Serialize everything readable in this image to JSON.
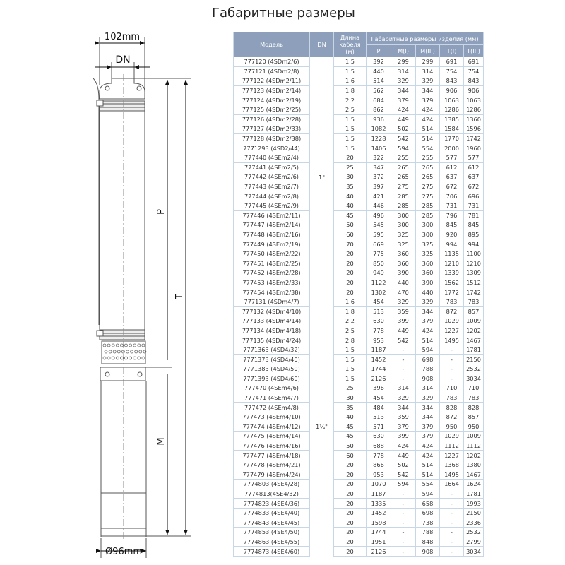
{
  "title": "Габаритные размеры",
  "drawing": {
    "width_top": "102mm",
    "dn_label": "DN",
    "p_label": "P",
    "t_label": "T",
    "m_label": "M",
    "diameter": "Ø96mm"
  },
  "table": {
    "headers": {
      "model": "Модель",
      "dn": "DN",
      "cable": "Длина кабеля (м)",
      "group": "Габаритные размеры изделия (мм)",
      "cols": [
        "P",
        "M(I)",
        "M(III)",
        "T(I)",
        "T(III)"
      ]
    },
    "groups": [
      {
        "dn": "1\"",
        "rows": [
          [
            "777120 (4SDm2/6)",
            "1.5",
            "392",
            "299",
            "299",
            "691",
            "691"
          ],
          [
            "777121 (4SDm2/8)",
            "1.5",
            "440",
            "314",
            "314",
            "754",
            "754"
          ],
          [
            "777122 (4SDm2/11)",
            "1.6",
            "514",
            "329",
            "329",
            "843",
            "843"
          ],
          [
            "777123 (4SDm2/14)",
            "1.8",
            "562",
            "344",
            "344",
            "906",
            "906"
          ],
          [
            "777124 (4SDm2/19)",
            "2.2",
            "684",
            "379",
            "379",
            "1063",
            "1063"
          ],
          [
            "777125 (4SDm2/25)",
            "2.5",
            "862",
            "424",
            "424",
            "1286",
            "1286"
          ],
          [
            "777126 (4SDm2/28)",
            "1.5",
            "936",
            "449",
            "424",
            "1385",
            "1360"
          ],
          [
            "777127 (4SDm2/33)",
            "1.5",
            "1082",
            "502",
            "514",
            "1584",
            "1596"
          ],
          [
            "777128 (4SDm2/38)",
            "1.5",
            "1228",
            "542",
            "514",
            "1770",
            "1742"
          ],
          [
            "7771293 (4SD2/44)",
            "1.5",
            "1406",
            "594",
            "554",
            "2000",
            "1960"
          ],
          [
            "777440 (4SEm2/4)",
            "20",
            "322",
            "255",
            "255",
            "577",
            "577"
          ],
          [
            "777441 (4SEm2/5)",
            "25",
            "347",
            "265",
            "265",
            "612",
            "612"
          ],
          [
            "777442 (4SEm2/6)",
            "30",
            "372",
            "265",
            "265",
            "637",
            "637"
          ],
          [
            "777443 (4SEm2/7)",
            "35",
            "397",
            "275",
            "275",
            "672",
            "672"
          ],
          [
            "777444 (4SEm2/8)",
            "40",
            "421",
            "285",
            "275",
            "706",
            "696"
          ],
          [
            "777445 (4SEm2/9)",
            "40",
            "446",
            "285",
            "285",
            "731",
            "731"
          ],
          [
            "777446 (4SEm2/11)",
            "45",
            "496",
            "300",
            "285",
            "796",
            "781"
          ],
          [
            "777447 (4SEm2/14)",
            "50",
            "545",
            "300",
            "300",
            "845",
            "845"
          ],
          [
            "777448 (4SEm2/16)",
            "60",
            "595",
            "325",
            "300",
            "920",
            "895"
          ],
          [
            "777449 (4SEm2/19)",
            "70",
            "669",
            "325",
            "325",
            "994",
            "994"
          ],
          [
            "777450 (4SEm2/22)",
            "20",
            "775",
            "360",
            "325",
            "1135",
            "1100"
          ],
          [
            "777451 (4SEm2/25)",
            "20",
            "850",
            "360",
            "360",
            "1210",
            "1210"
          ],
          [
            "777452 (4SEm2/28)",
            "20",
            "949",
            "390",
            "360",
            "1339",
            "1309"
          ],
          [
            "777453 (4SEm2/33)",
            "20",
            "1122",
            "440",
            "390",
            "1562",
            "1512"
          ],
          [
            "777454 (4SEm2/38)",
            "20",
            "1302",
            "470",
            "440",
            "1772",
            "1742"
          ]
        ]
      },
      {
        "dn": "1¼\"",
        "rows": [
          [
            "777131 (4SDm4/7)",
            "1.6",
            "454",
            "329",
            "329",
            "783",
            "783"
          ],
          [
            "777132 (4SDm4/10)",
            "1.8",
            "513",
            "359",
            "344",
            "872",
            "857"
          ],
          [
            "777133 (4SDm4/14)",
            "2.2",
            "630",
            "399",
            "379",
            "1029",
            "1009"
          ],
          [
            "777134 (4SDm4/18)",
            "2.5",
            "778",
            "449",
            "424",
            "1227",
            "1202"
          ],
          [
            "777135 (4SDm4/24)",
            "2.8",
            "953",
            "542",
            "514",
            "1495",
            "1467"
          ],
          [
            "7771363 (4SD4/32)",
            "1.5",
            "1187",
            "-",
            "594",
            "-",
            "1781"
          ],
          [
            "7771373 (4SD4/40)",
            "1.5",
            "1452",
            "-",
            "698",
            "-",
            "2150"
          ],
          [
            "7771383 (4SD4/50)",
            "1.5",
            "1744",
            "-",
            "788",
            "-",
            "2532"
          ],
          [
            "7771393 (4SD4/60)",
            "1.5",
            "2126",
            "-",
            "908",
            "-",
            "3034"
          ],
          [
            "777470 (4SEm4/6)",
            "25",
            "396",
            "314",
            "314",
            "710",
            "710"
          ],
          [
            "777471 (4SEm4/7)",
            "30",
            "454",
            "329",
            "329",
            "783",
            "783"
          ],
          [
            "777472 (4SEm4/8)",
            "35",
            "484",
            "344",
            "344",
            "828",
            "828"
          ],
          [
            "777473 (4SEm4/10)",
            "40",
            "513",
            "359",
            "344",
            "872",
            "857"
          ],
          [
            "777474 (4SEm4/12)",
            "45",
            "571",
            "379",
            "379",
            "950",
            "950"
          ],
          [
            "777475 (4SEm4/14)",
            "45",
            "630",
            "399",
            "379",
            "1029",
            "1009"
          ],
          [
            "777476 (4SEm4/16)",
            "50",
            "688",
            "424",
            "424",
            "1112",
            "1112"
          ],
          [
            "777477 (4SEm4/18)",
            "60",
            "778",
            "449",
            "424",
            "1227",
            "1202"
          ],
          [
            "777478 (4SEm4/21)",
            "20",
            "866",
            "502",
            "514",
            "1368",
            "1380"
          ],
          [
            "777479 (4SEm4/24)",
            "20",
            "953",
            "542",
            "514",
            "1495",
            "1467"
          ],
          [
            "7774803 (4SE4/28)",
            "20",
            "1070",
            "594",
            "554",
            "1664",
            "1624"
          ],
          [
            "7774813(4SE4/32)",
            "20",
            "1187",
            "-",
            "594",
            "-",
            "1781"
          ],
          [
            "7774823 (4SE4/36)",
            "20",
            "1335",
            "-",
            "658",
            "-",
            "1993"
          ],
          [
            "7774833 (4SE4/40)",
            "20",
            "1452",
            "-",
            "698",
            "-",
            "2150"
          ],
          [
            "7774843 (4SE4/45)",
            "20",
            "1598",
            "-",
            "738",
            "-",
            "2336"
          ],
          [
            "7774853 (4SE4/50)",
            "20",
            "1744",
            "-",
            "788",
            "-",
            "2532"
          ],
          [
            "7774863 (4SE4/55)",
            "20",
            "1951",
            "-",
            "848",
            "-",
            "2799"
          ],
          [
            "7774873 (4SE4/60)",
            "20",
            "2126",
            "-",
            "908",
            "-",
            "3034"
          ]
        ]
      }
    ]
  },
  "colors": {
    "header_bg": "#8d9fba",
    "grid": "#c9d6e6"
  }
}
